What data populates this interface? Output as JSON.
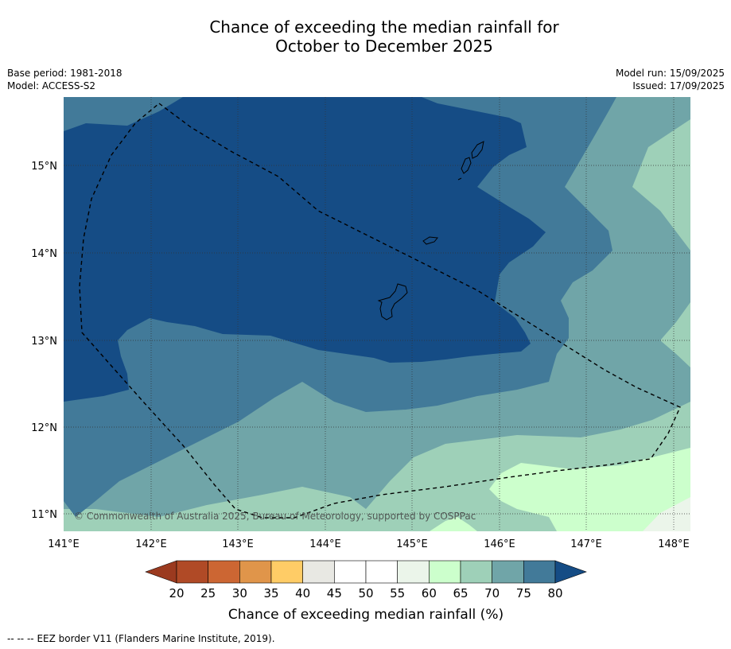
{
  "title": {
    "line1": "Chance of exceeding the median rainfall for",
    "line2": "October to December 2025"
  },
  "meta_left": {
    "base_period": "Base period: 1981-2018",
    "model": "Model: ACCESS-S2"
  },
  "meta_right": {
    "model_run": "Model run: 15/09/2025",
    "issued": "Issued: 17/09/2025"
  },
  "map": {
    "lon_ticks": [
      "141°E",
      "142°E",
      "143°E",
      "144°E",
      "145°E",
      "146°E",
      "147°E",
      "148°E"
    ],
    "lat_ticks": [
      "15°N",
      "14°N",
      "13°N",
      "12°N",
      "11°N"
    ],
    "copyright": "© Commonwealth of Australia 2025, Bureau of Meteorology, supported by COSPPac",
    "colors": {
      "band_80plus": "#154c85",
      "band_75_80": "#427a99",
      "band_70_75": "#70a5a8",
      "band_65_70": "#9ed0b8",
      "band_60_65": "#ccffcc",
      "band_55_60": "#ebf5ea"
    }
  },
  "colorbar": {
    "ticks": [
      "20",
      "25",
      "30",
      "35",
      "40",
      "45",
      "50",
      "55",
      "60",
      "65",
      "70",
      "75",
      "80"
    ],
    "label": "Chance of exceeding median rainfall (%)",
    "under_color": "#9b3a1f",
    "over_color": "#154c85",
    "colors": [
      "#b04a26",
      "#cc6633",
      "#e0954a",
      "#ffcc66",
      "#e8e8e3",
      "#ffffff",
      "#ffffff",
      "#ebf5ea",
      "#ccffcc",
      "#9ed0b8",
      "#70a5a8",
      "#427a99"
    ]
  },
  "footer": {
    "legend_symbol": "-- -- --",
    "text": "EEZ border V11 (Flanders Marine Institute, 2019)."
  }
}
